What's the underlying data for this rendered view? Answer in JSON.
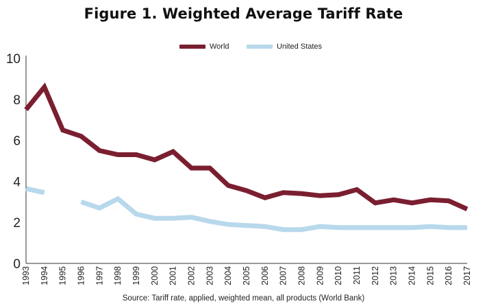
{
  "chart_data": {
    "type": "line",
    "title": "Figure 1. Weighted Average Tariff Rate",
    "source": "Source: Tariff rate, applied, weighted mean, all products (World Bank)",
    "xlabel": "",
    "ylabel": "",
    "ylim": [
      0,
      10
    ],
    "yticks": [
      "0",
      "2",
      "4",
      "6",
      "8",
      "10"
    ],
    "grid": false,
    "legend_position": "top-center",
    "x": [
      "1993",
      "1994",
      "1995",
      "1996",
      "1997",
      "1998",
      "1999",
      "2000",
      "2001",
      "2002",
      "2003",
      "2004",
      "2005",
      "2006",
      "2007",
      "2008",
      "2009",
      "2010",
      "2011",
      "2012",
      "2013",
      "2014",
      "2015",
      "2016",
      "2017"
    ],
    "series": [
      {
        "name": "World",
        "color": "#7a1f30",
        "values": [
          7.5,
          8.6,
          6.5,
          6.2,
          5.5,
          5.3,
          5.3,
          5.05,
          5.45,
          4.65,
          4.65,
          3.8,
          3.55,
          3.2,
          3.45,
          3.4,
          3.3,
          3.35,
          3.6,
          2.95,
          3.1,
          2.95,
          3.1,
          3.05,
          2.65
        ]
      },
      {
        "name": "United States",
        "color": "#b8d8ec",
        "values": [
          3.65,
          3.45,
          null,
          3.0,
          2.7,
          3.15,
          2.4,
          2.2,
          2.2,
          2.25,
          2.05,
          1.9,
          1.85,
          1.8,
          1.65,
          1.65,
          1.8,
          1.75,
          1.75,
          1.75,
          1.75,
          1.75,
          1.8,
          1.75,
          1.75
        ]
      }
    ]
  }
}
